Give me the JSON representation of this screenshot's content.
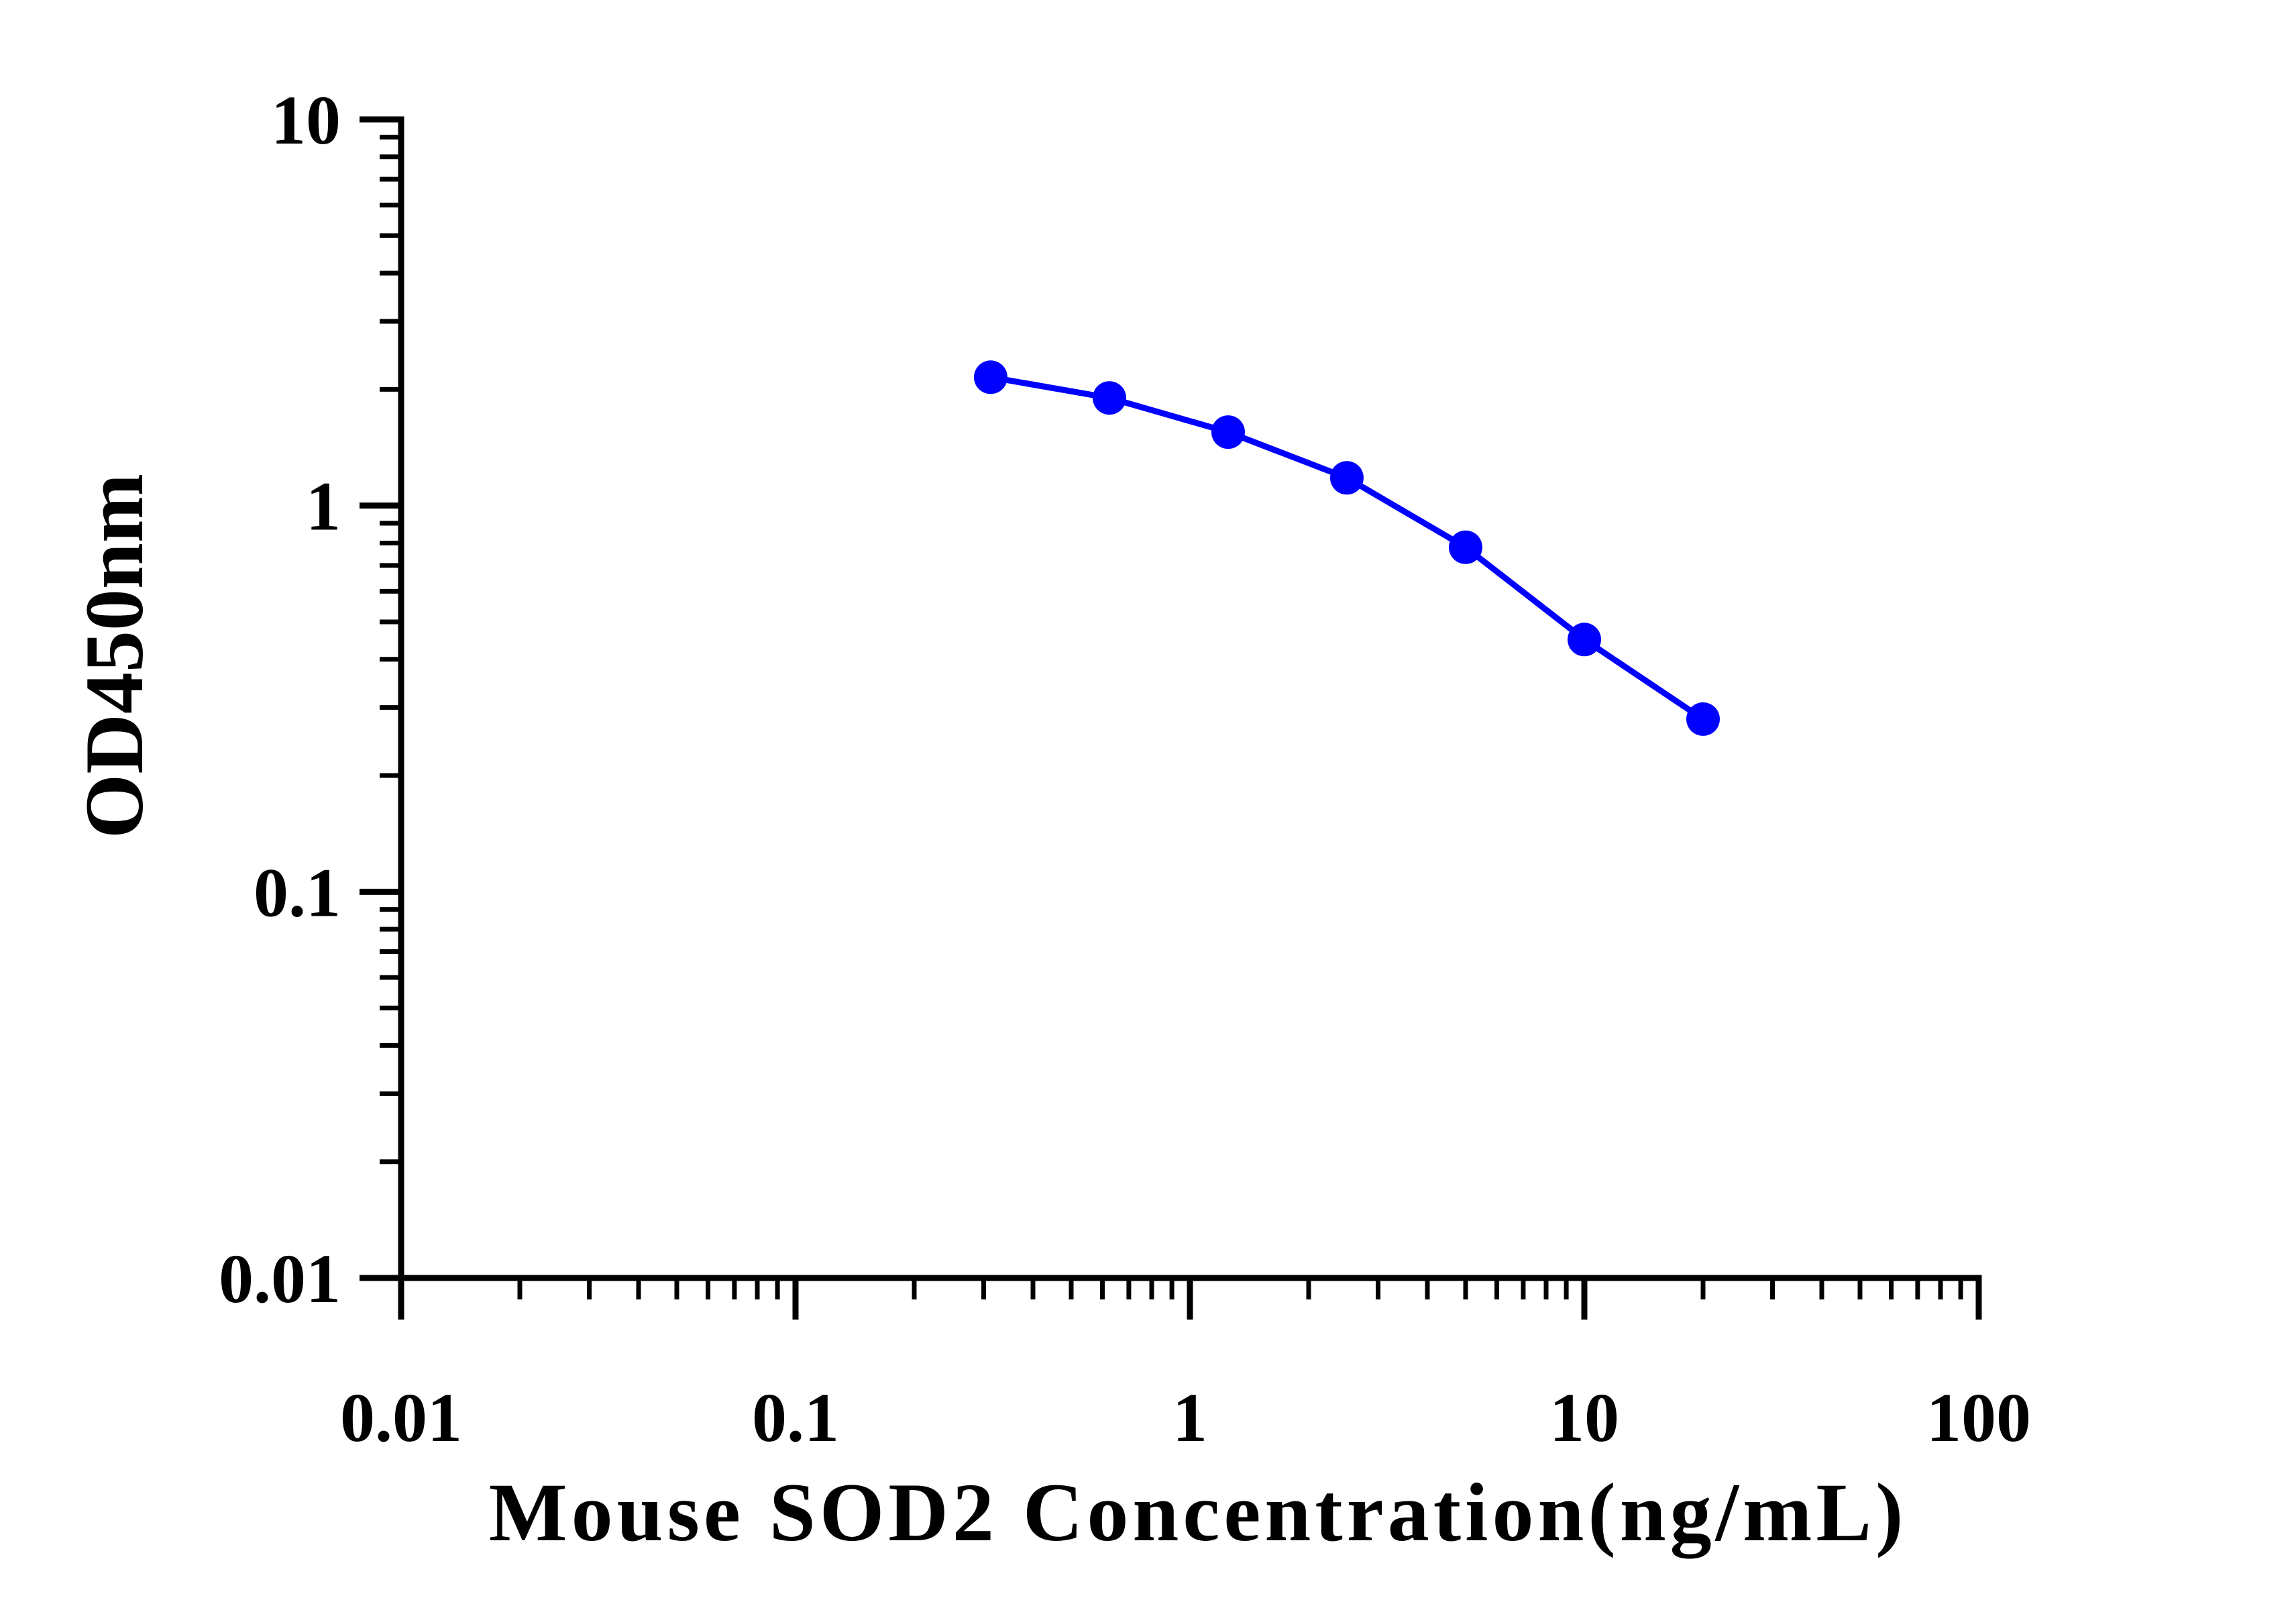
{
  "chart_data": {
    "type": "scatter",
    "title": "",
    "xlabel": "Mouse SOD2 Concentration(ng/mL)",
    "ylabel": "OD450nm",
    "x_scale": "log",
    "y_scale": "log",
    "xlim": [
      0.01,
      100
    ],
    "ylim": [
      0.01,
      10
    ],
    "x_tick_labels": [
      "0.01",
      "0.1",
      "1",
      "10",
      "100"
    ],
    "y_tick_labels": [
      "0.01",
      "0.1",
      "1",
      "10"
    ],
    "grid": false,
    "legend": "none",
    "series": [
      {
        "color": "#0000ff",
        "x": [
          0.3125,
          0.625,
          1.25,
          2.5,
          5,
          10,
          20
        ],
        "y": [
          2.15,
          1.9,
          1.55,
          1.18,
          0.78,
          0.45,
          0.28
        ]
      }
    ]
  }
}
